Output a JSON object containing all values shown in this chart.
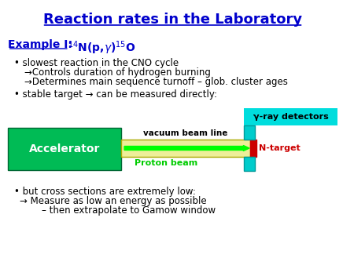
{
  "title": "Reaction rates in the Laboratory",
  "title_color": "#0000CC",
  "title_fontsize": 13,
  "bg_color": "#ffffff",
  "example_color": "#0000CC",
  "bullet1": "slowest reaction in the CNO cycle",
  "sub1a": "→Controls duration of hydrogen burning",
  "sub1b": "→Determines main sequence turnoff – glob. cluster ages",
  "bullet2": "stable target → can be measured directly:",
  "bullet3": "but cross sections are extremely low:",
  "sub3a": "→ Measure as low an energy as possible",
  "sub3b": "– then extrapolate to Gamow window",
  "accel_box_color": "#00BB55",
  "accel_text": "Accelerator",
  "accel_text_color": "#ffffff",
  "beam_tube_color": "#EEEE99",
  "beam_tube_border": "#AAAA00",
  "proton_arrow_color": "#00FF00",
  "proton_label": "Proton beam",
  "proton_label_color": "#00CC00",
  "vac_label": "vacuum beam line",
  "ntarget_box_color": "#CC0000",
  "ntarget_label": "N-target",
  "ntarget_label_color": "#CC0000",
  "detector_box_color": "#00CCCC",
  "detector_label": "γ-ray detectors",
  "detector_bg": "#00DDDD"
}
